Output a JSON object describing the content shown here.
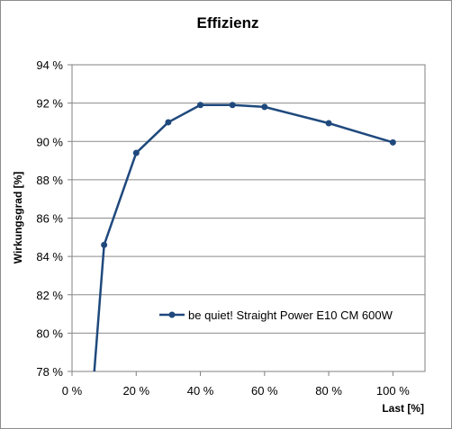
{
  "chart_data": {
    "type": "line",
    "title": "Effizienz",
    "xlabel": "Last [%]",
    "ylabel": "Wirkungsgrad [%]",
    "xlim": [
      0,
      110
    ],
    "ylim": [
      78,
      94
    ],
    "x_ticks": [
      0,
      20,
      40,
      60,
      80,
      100
    ],
    "x_tick_labels": [
      "0 %",
      "20 %",
      "40 %",
      "60 %",
      "80 %",
      "100 %"
    ],
    "y_ticks": [
      78,
      80,
      82,
      84,
      86,
      88,
      90,
      92,
      94
    ],
    "y_tick_labels": [
      "78 %",
      "80 %",
      "82 %",
      "84 %",
      "86 %",
      "88 %",
      "90 %",
      "92 %",
      "94 %"
    ],
    "grid": "horizontal",
    "legend_position": "lower-right inside",
    "series": [
      {
        "name": "be quiet! Straight Power E10 CM 600W",
        "color": "#1f497d",
        "x": [
          10,
          20,
          30,
          40,
          50,
          60,
          80,
          100
        ],
        "y": [
          84.6,
          89.4,
          91.0,
          91.9,
          91.9,
          91.8,
          90.95,
          89.95
        ]
      }
    ]
  }
}
